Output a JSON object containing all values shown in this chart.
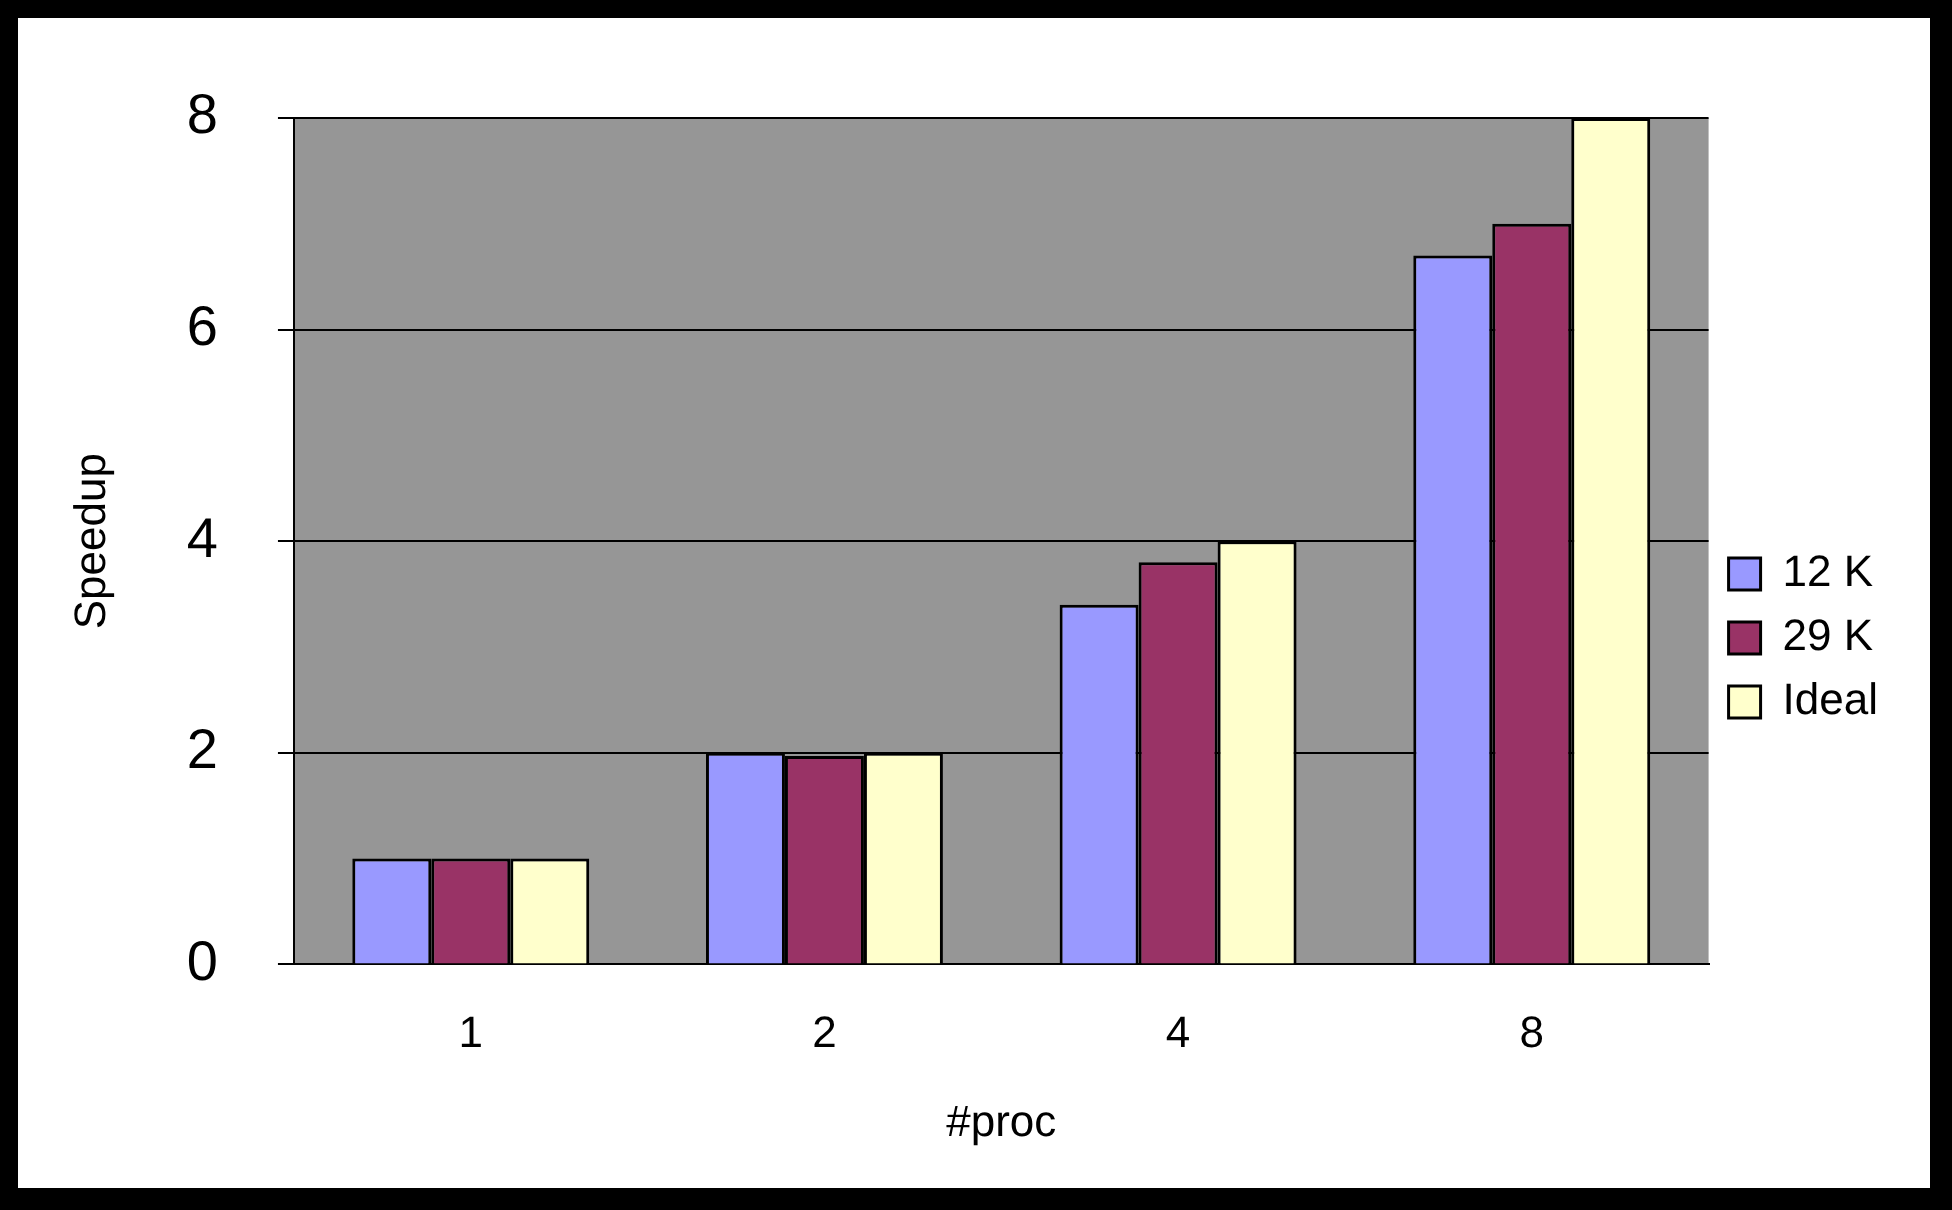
{
  "chart_data": {
    "type": "bar",
    "xlabel": "#proc",
    "ylabel": "Speedup",
    "categories": [
      "1",
      "2",
      "4",
      "8"
    ],
    "series": [
      {
        "name": "12 K",
        "color": "#9999ff",
        "values": [
          1,
          2,
          3.4,
          6.7
        ]
      },
      {
        "name": "29 K",
        "color": "#993366",
        "values": [
          1,
          1.97,
          3.8,
          7
        ]
      },
      {
        "name": "Ideal",
        "color": "#ffffcc",
        "values": [
          1,
          2,
          4,
          8
        ]
      }
    ],
    "ylim": [
      0,
      8
    ],
    "yticks": [
      0,
      2,
      4,
      6,
      8
    ],
    "grid": "y",
    "legend": "right"
  }
}
